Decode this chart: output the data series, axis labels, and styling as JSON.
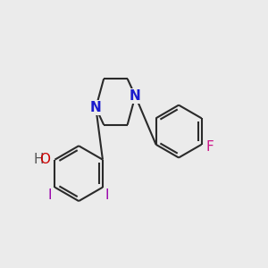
{
  "background_color": "#ebebeb",
  "bond_color": "#2a2a2a",
  "bond_width": 1.5,
  "N_color": "#1a1acc",
  "O_color": "#cc0000",
  "F_color": "#cc1488",
  "I_color": "#9900aa",
  "font_size_atoms": 11,
  "fig_size": [
    3.0,
    3.0
  ],
  "dpi": 100,
  "xlim": [
    0,
    10
  ],
  "ylim": [
    0,
    10
  ]
}
